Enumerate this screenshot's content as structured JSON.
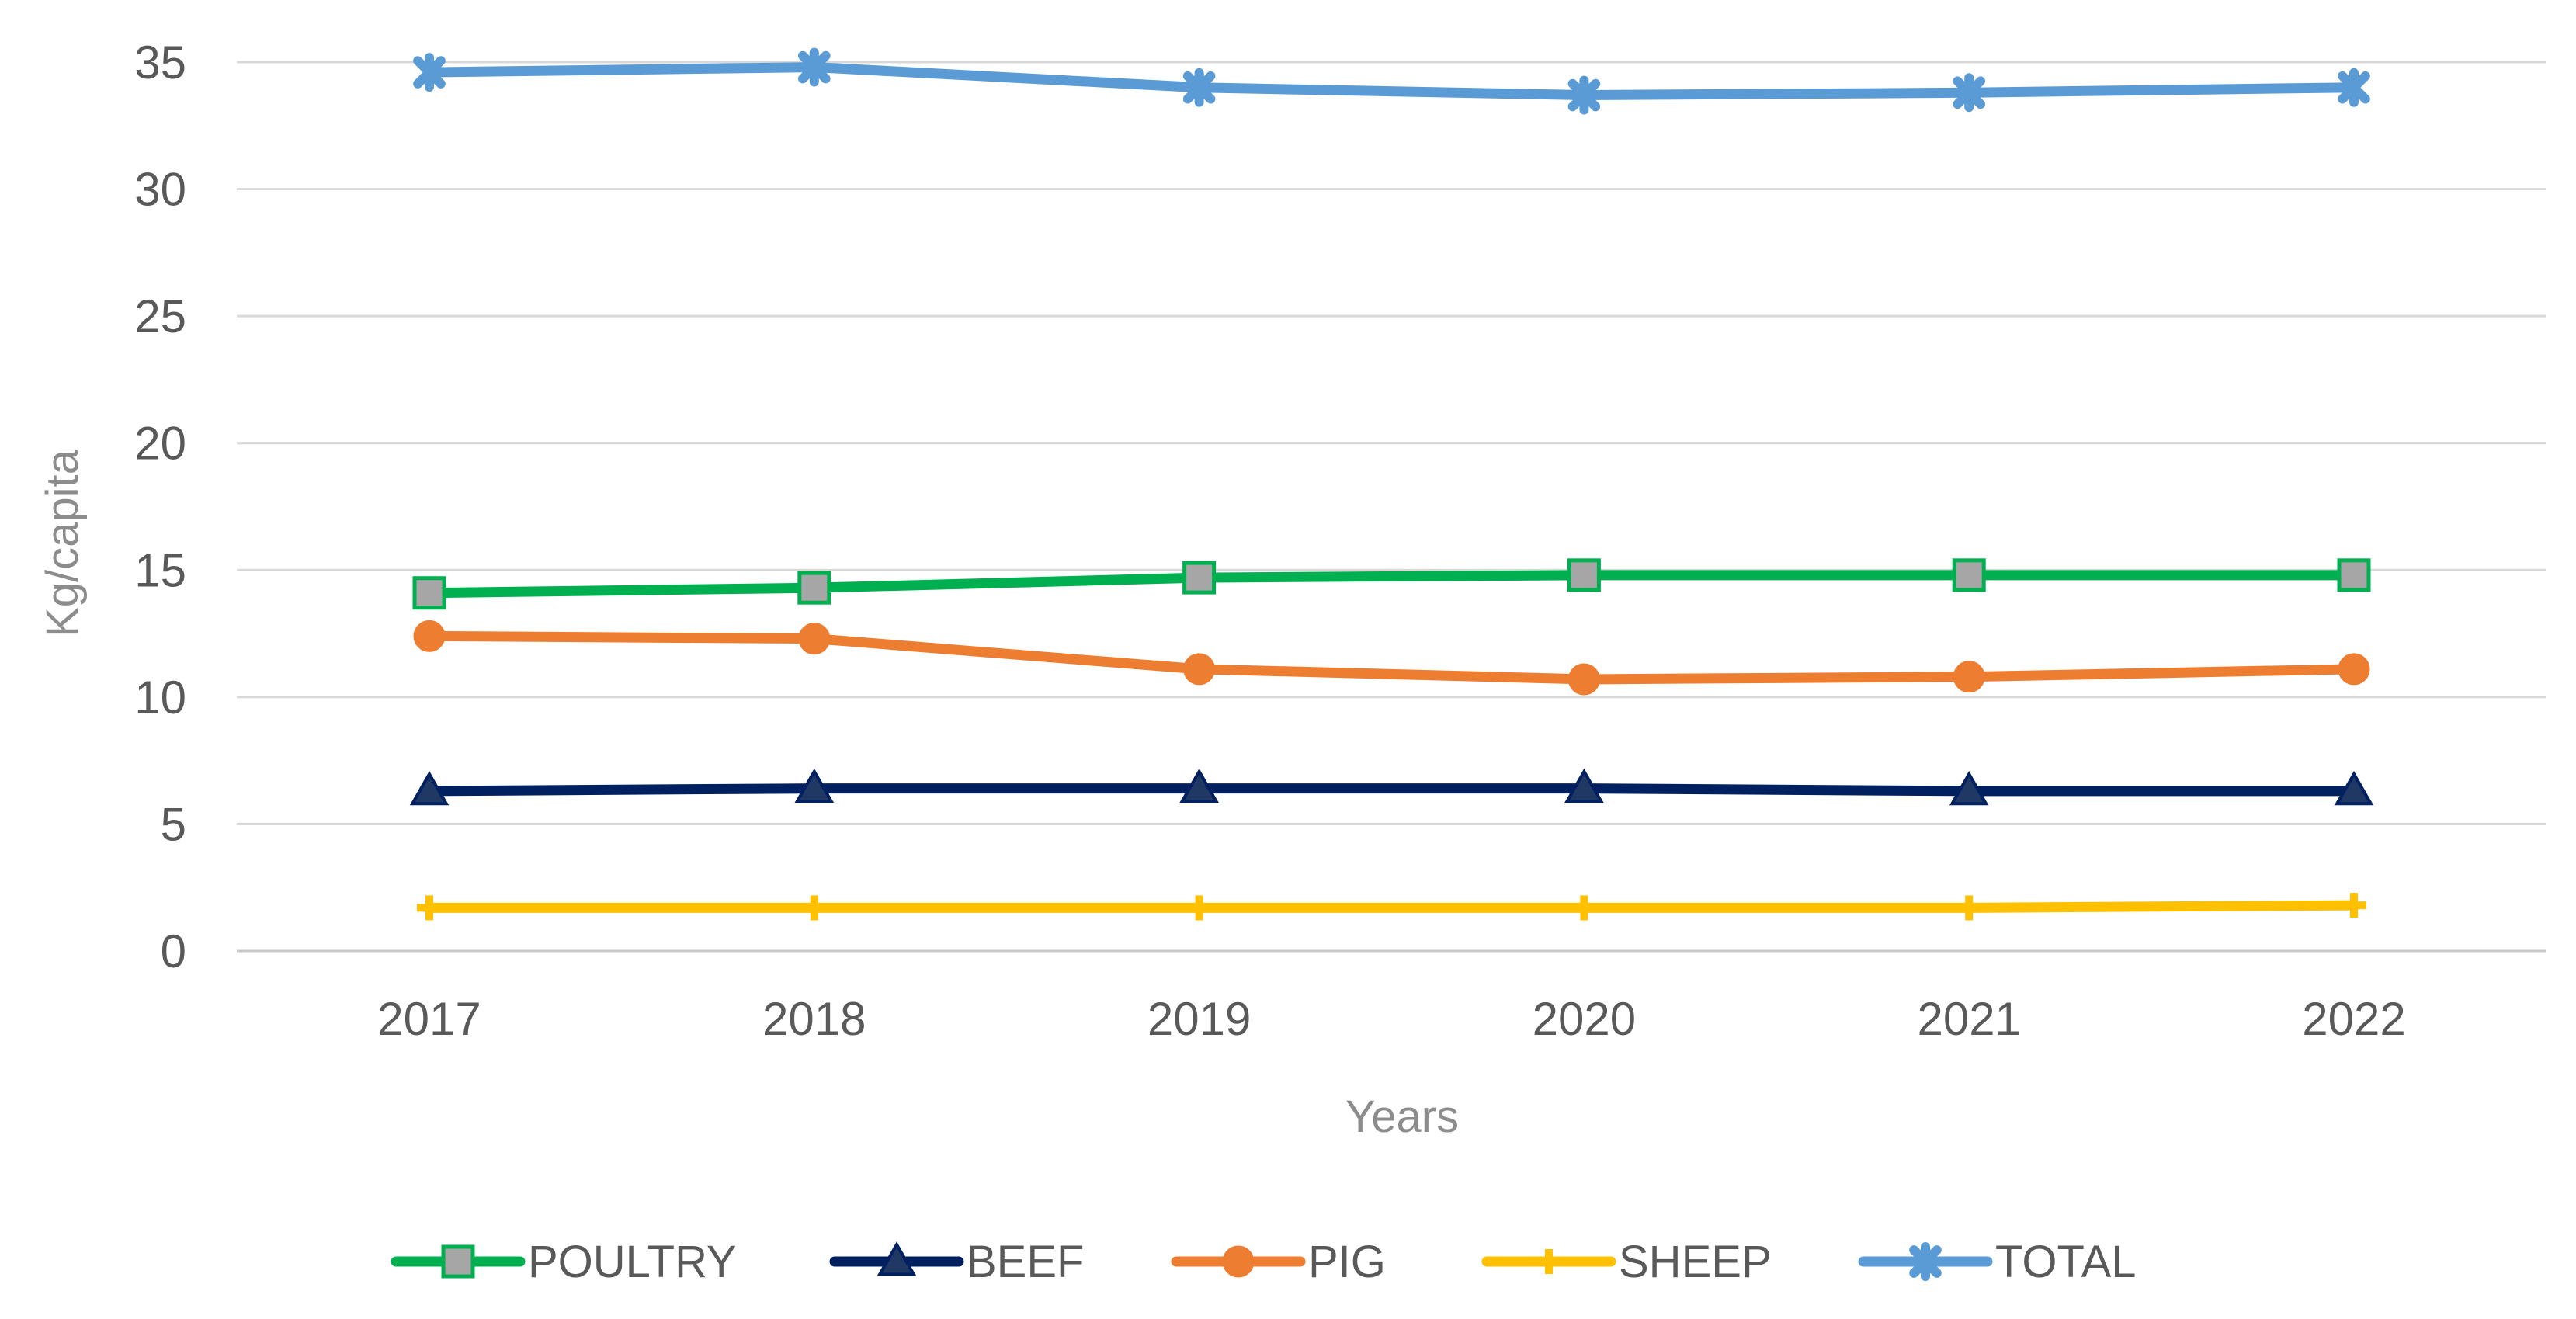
{
  "chart_data": {
    "type": "line",
    "title": "",
    "xlabel": "Years",
    "ylabel": "Kg/capita",
    "ylim": [
      0,
      35
    ],
    "yticks": [
      0,
      5,
      10,
      15,
      20,
      25,
      30,
      35
    ],
    "grid": true,
    "legend_position": "bottom",
    "categories": [
      "2017",
      "2018",
      "2019",
      "2020",
      "2021",
      "2022"
    ],
    "series": [
      {
        "name": "POULTRY",
        "color": "#00b050",
        "marker": "square",
        "marker_fill": "#a6a6a6",
        "values": [
          14.1,
          14.3,
          14.7,
          14.8,
          14.8,
          14.8
        ]
      },
      {
        "name": "BEEF",
        "color": "#002060",
        "marker": "triangle",
        "marker_fill": "#1f3864",
        "values": [
          6.3,
          6.4,
          6.4,
          6.4,
          6.3,
          6.3
        ]
      },
      {
        "name": "PIG",
        "color": "#ed7d31",
        "marker": "circle",
        "marker_fill": "#ed7d31",
        "values": [
          12.4,
          12.3,
          11.1,
          10.7,
          10.8,
          11.1
        ]
      },
      {
        "name": "SHEEP",
        "color": "#ffc000",
        "marker": "plus",
        "marker_fill": "#ffc000",
        "values": [
          1.7,
          1.7,
          1.7,
          1.7,
          1.7,
          1.8
        ]
      },
      {
        "name": "TOTAL",
        "color": "#5b9bd5",
        "marker": "star",
        "marker_fill": "#5b9bd5",
        "values": [
          34.6,
          34.8,
          34.0,
          33.7,
          33.8,
          34.0
        ]
      }
    ]
  }
}
